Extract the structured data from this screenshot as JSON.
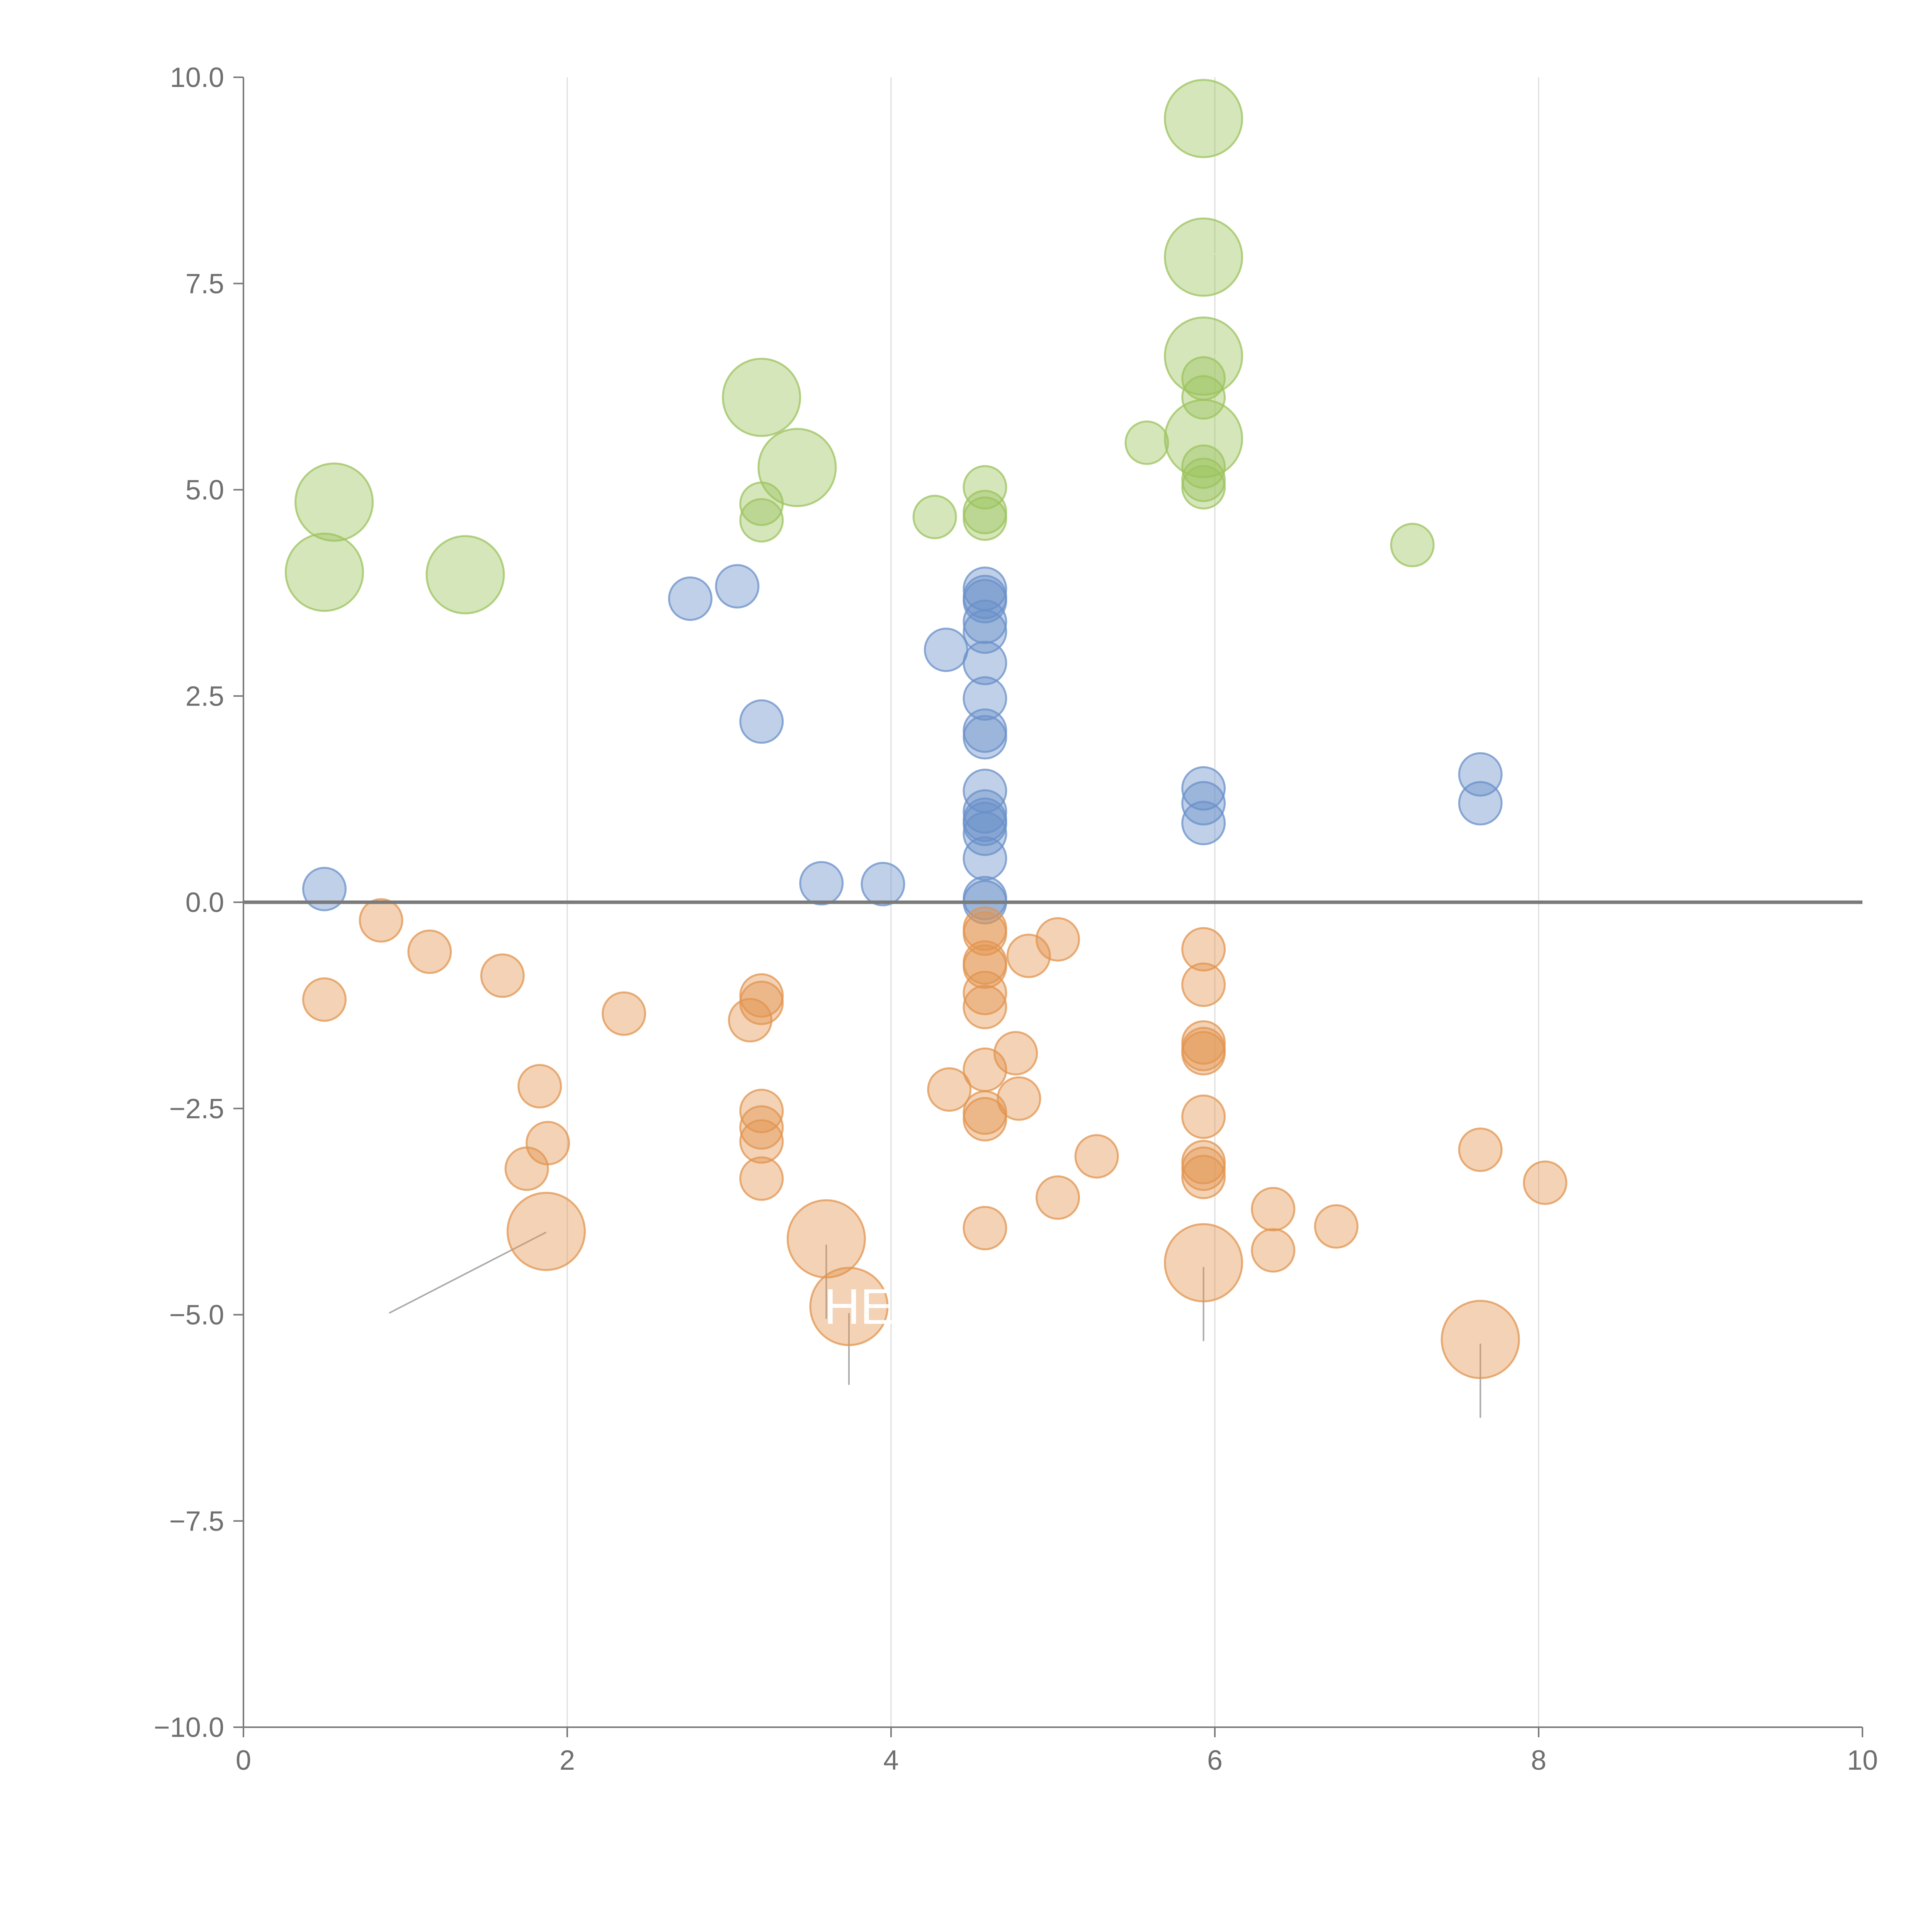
{
  "chart_data": {
    "type": "scatter",
    "title": "",
    "xlabel": "",
    "ylabel": "",
    "xlim": [
      0,
      10
    ],
    "ylim": [
      -10,
      10
    ],
    "x_ticks": [
      0,
      2,
      4,
      6,
      8,
      10
    ],
    "x_tick_labels": [
      "0",
      "2",
      "4",
      "6",
      "8",
      "10"
    ],
    "y_ticks": [
      10,
      7.5,
      5,
      2.5,
      0,
      -2.5,
      -5,
      -7.5,
      -10
    ],
    "y_tick_labels": [
      "10.0",
      "7.5",
      "5.0",
      "2.5",
      "0.0",
      "−2.5",
      "−5.0",
      "−7.5",
      "−10.0"
    ],
    "vertical_gridlines": [
      2,
      4,
      6,
      8
    ],
    "reference_line_y": 0,
    "colors": {
      "green": "#9cc35e",
      "blue": "#6990c9",
      "orange": "#e2944f"
    },
    "series": [
      {
        "name": "green",
        "color": "#9cc35e",
        "points": [
          {
            "x": 5.93,
            "y": 9.5,
            "s": 3
          },
          {
            "x": 5.93,
            "y": 7.82,
            "s": 3
          },
          {
            "x": 5.93,
            "y": 6.62,
            "s": 3
          },
          {
            "x": 5.93,
            "y": 6.35,
            "s": 1
          },
          {
            "x": 5.93,
            "y": 6.12,
            "s": 1
          },
          {
            "x": 5.93,
            "y": 5.62,
            "s": 3
          },
          {
            "x": 5.93,
            "y": 5.28,
            "s": 1
          },
          {
            "x": 5.93,
            "y": 5.12,
            "s": 1
          },
          {
            "x": 5.93,
            "y": 5.03,
            "s": 1
          },
          {
            "x": 5.58,
            "y": 5.57,
            "s": 1
          },
          {
            "x": 3.2,
            "y": 6.12,
            "s": 3
          },
          {
            "x": 3.42,
            "y": 5.27,
            "s": 3
          },
          {
            "x": 3.2,
            "y": 4.83,
            "s": 1
          },
          {
            "x": 3.2,
            "y": 4.63,
            "s": 1
          },
          {
            "x": 4.27,
            "y": 4.67,
            "s": 1
          },
          {
            "x": 4.58,
            "y": 5.03,
            "s": 1
          },
          {
            "x": 4.58,
            "y": 4.73,
            "s": 1
          },
          {
            "x": 4.58,
            "y": 4.65,
            "s": 1
          },
          {
            "x": 0.56,
            "y": 4.85,
            "s": 3
          },
          {
            "x": 0.5,
            "y": 4.0,
            "s": 3
          },
          {
            "x": 1.37,
            "y": 3.97,
            "s": 3
          },
          {
            "x": 7.22,
            "y": 4.33,
            "s": 1
          }
        ]
      },
      {
        "name": "blue",
        "color": "#6990c9",
        "points": [
          {
            "x": 0.5,
            "y": 0.16,
            "s": 1
          },
          {
            "x": 2.76,
            "y": 3.68,
            "s": 1
          },
          {
            "x": 3.05,
            "y": 3.83,
            "s": 1
          },
          {
            "x": 3.2,
            "y": 2.19,
            "s": 1
          },
          {
            "x": 3.57,
            "y": 0.23,
            "s": 1
          },
          {
            "x": 3.95,
            "y": 0.22,
            "s": 1
          },
          {
            "x": 4.34,
            "y": 3.06,
            "s": 1
          },
          {
            "x": 4.58,
            "y": 3.8,
            "s": 1
          },
          {
            "x": 4.58,
            "y": 3.7,
            "s": 1
          },
          {
            "x": 4.58,
            "y": 3.65,
            "s": 1
          },
          {
            "x": 4.58,
            "y": 3.4,
            "s": 1
          },
          {
            "x": 4.58,
            "y": 3.28,
            "s": 1
          },
          {
            "x": 4.58,
            "y": 2.9,
            "s": 1
          },
          {
            "x": 4.58,
            "y": 2.47,
            "s": 1
          },
          {
            "x": 4.58,
            "y": 2.08,
            "s": 1
          },
          {
            "x": 4.58,
            "y": 2.0,
            "s": 1
          },
          {
            "x": 4.58,
            "y": 1.35,
            "s": 1
          },
          {
            "x": 4.58,
            "y": 1.1,
            "s": 1
          },
          {
            "x": 4.58,
            "y": 1.0,
            "s": 1
          },
          {
            "x": 4.58,
            "y": 0.95,
            "s": 1
          },
          {
            "x": 4.58,
            "y": 0.83,
            "s": 1
          },
          {
            "x": 4.58,
            "y": 0.53,
            "s": 1
          },
          {
            "x": 4.58,
            "y": 0.05,
            "s": 1
          },
          {
            "x": 4.58,
            "y": 0.0,
            "s": 1
          },
          {
            "x": 5.93,
            "y": 1.38,
            "s": 1
          },
          {
            "x": 5.93,
            "y": 1.2,
            "s": 1
          },
          {
            "x": 5.93,
            "y": 0.96,
            "s": 1
          },
          {
            "x": 7.64,
            "y": 1.55,
            "s": 1
          },
          {
            "x": 7.64,
            "y": 1.2,
            "s": 1
          }
        ]
      },
      {
        "name": "orange",
        "color": "#e2944f",
        "points": [
          {
            "x": 0.5,
            "y": -1.18,
            "s": 1
          },
          {
            "x": 0.85,
            "y": -0.22,
            "s": 1
          },
          {
            "x": 1.15,
            "y": -0.6,
            "s": 1
          },
          {
            "x": 1.6,
            "y": -0.89,
            "s": 1
          },
          {
            "x": 1.83,
            "y": -2.23,
            "s": 1
          },
          {
            "x": 1.88,
            "y": -2.92,
            "s": 1
          },
          {
            "x": 1.75,
            "y": -3.23,
            "s": 1
          },
          {
            "x": 1.87,
            "y": -3.99,
            "s": 3
          },
          {
            "x": 2.35,
            "y": -1.35,
            "s": 1
          },
          {
            "x": 3.13,
            "y": -1.43,
            "s": 1
          },
          {
            "x": 3.2,
            "y": -1.13,
            "s": 1
          },
          {
            "x": 3.2,
            "y": -1.22,
            "s": 1
          },
          {
            "x": 3.2,
            "y": -2.53,
            "s": 1
          },
          {
            "x": 3.2,
            "y": -2.73,
            "s": 1
          },
          {
            "x": 3.2,
            "y": -2.9,
            "s": 1
          },
          {
            "x": 3.2,
            "y": -3.35,
            "s": 1
          },
          {
            "x": 3.6,
            "y": -4.08,
            "s": 3
          },
          {
            "x": 3.74,
            "y": -4.9,
            "s": 3
          },
          {
            "x": 4.36,
            "y": -2.27,
            "s": 1
          },
          {
            "x": 4.58,
            "y": -0.32,
            "s": 1
          },
          {
            "x": 4.58,
            "y": -0.38,
            "s": 1
          },
          {
            "x": 4.58,
            "y": -0.73,
            "s": 1
          },
          {
            "x": 4.58,
            "y": -0.78,
            "s": 1
          },
          {
            "x": 4.58,
            "y": -1.1,
            "s": 1
          },
          {
            "x": 4.58,
            "y": -1.27,
            "s": 1
          },
          {
            "x": 4.58,
            "y": -2.03,
            "s": 1
          },
          {
            "x": 4.58,
            "y": -2.55,
            "s": 1
          },
          {
            "x": 4.58,
            "y": -2.63,
            "s": 1
          },
          {
            "x": 4.58,
            "y": -3.95,
            "s": 1
          },
          {
            "x": 4.77,
            "y": -1.83,
            "s": 1
          },
          {
            "x": 4.79,
            "y": -2.38,
            "s": 1
          },
          {
            "x": 4.85,
            "y": -0.65,
            "s": 1
          },
          {
            "x": 5.03,
            "y": -0.45,
            "s": 1
          },
          {
            "x": 5.03,
            "y": -3.58,
            "s": 1
          },
          {
            "x": 5.27,
            "y": -3.08,
            "s": 1
          },
          {
            "x": 5.93,
            "y": -0.57,
            "s": 1
          },
          {
            "x": 5.93,
            "y": -1.0,
            "s": 1
          },
          {
            "x": 5.93,
            "y": -1.7,
            "s": 1
          },
          {
            "x": 5.93,
            "y": -1.78,
            "s": 1
          },
          {
            "x": 5.93,
            "y": -1.83,
            "s": 1
          },
          {
            "x": 5.93,
            "y": -2.6,
            "s": 1
          },
          {
            "x": 5.93,
            "y": -3.15,
            "s": 1
          },
          {
            "x": 5.93,
            "y": -3.23,
            "s": 1
          },
          {
            "x": 5.93,
            "y": -3.33,
            "s": 1
          },
          {
            "x": 5.93,
            "y": -4.37,
            "s": 3
          },
          {
            "x": 6.36,
            "y": -3.72,
            "s": 1
          },
          {
            "x": 6.36,
            "y": -4.22,
            "s": 1
          },
          {
            "x": 6.75,
            "y": -3.93,
            "s": 1
          },
          {
            "x": 7.64,
            "y": -3.0,
            "s": 1
          },
          {
            "x": 7.64,
            "y": -5.3,
            "s": 3
          },
          {
            "x": 8.04,
            "y": -3.4,
            "s": 1
          }
        ]
      }
    ],
    "annotations": [
      {
        "text": "HE",
        "x": 3.74,
        "y": -4.9
      }
    ]
  }
}
